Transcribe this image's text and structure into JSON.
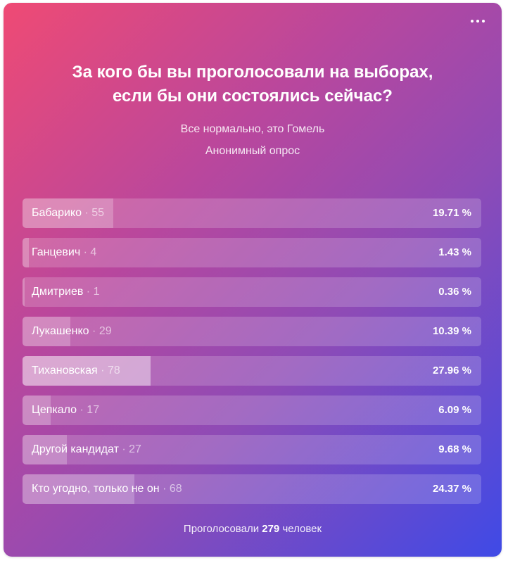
{
  "poll": {
    "title_line1": "За кого бы вы проголосовали на выборах,",
    "title_line2": "если бы они состоялись сейчас?",
    "author": "Все нормально, это Гомель",
    "type": "Анонимный опрос",
    "menu_icon": "more-horizontal-icon",
    "options": [
      {
        "name": "Бабарико",
        "votes": "55",
        "percent_text": "19.71 %",
        "percent": 19.71
      },
      {
        "name": "Ганцевич",
        "votes": "4",
        "percent_text": "1.43 %",
        "percent": 1.43
      },
      {
        "name": "Дмитриев",
        "votes": "1",
        "percent_text": "0.36 %",
        "percent": 0.36
      },
      {
        "name": "Лукашенко",
        "votes": "29",
        "percent_text": "10.39 %",
        "percent": 10.39
      },
      {
        "name": "Тихановская",
        "votes": "78",
        "percent_text": "27.96 %",
        "percent": 27.96
      },
      {
        "name": "Цепкало",
        "votes": "17",
        "percent_text": "6.09 %",
        "percent": 6.09
      },
      {
        "name": "Другой кандидат",
        "votes": "27",
        "percent_text": "9.68 %",
        "percent": 9.68
      },
      {
        "name": "Кто угодно, только не он",
        "votes": "68",
        "percent_text": "24.37 %",
        "percent": 24.37
      }
    ],
    "footer_prefix": "Проголосовали",
    "footer_count": "279",
    "footer_suffix": "человек",
    "separator": "·"
  },
  "colors": {
    "gradient_start": "#ef4a74",
    "gradient_end": "#3f4ae6",
    "text": "#ffffff"
  }
}
